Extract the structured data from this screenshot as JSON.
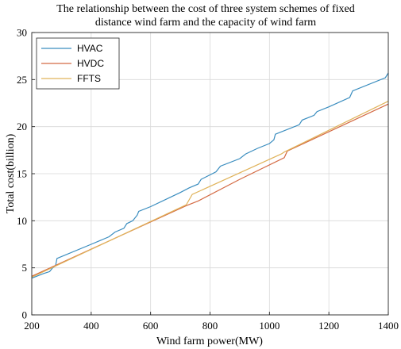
{
  "chart_data": {
    "type": "line",
    "title_lines": [
      "The relationship between the cost of three system schemes of fixed",
      "distance wind farm and the capacity of wind farm"
    ],
    "xlabel": "Wind farm power(MW)",
    "ylabel": "Total cost(billion)",
    "xlim": [
      200,
      1400
    ],
    "ylim": [
      0,
      30
    ],
    "xticks": [
      200,
      400,
      600,
      800,
      1000,
      1200,
      1400
    ],
    "yticks": [
      0,
      5,
      10,
      15,
      20,
      25,
      30
    ],
    "grid": true,
    "legend_position": "top-left",
    "series": [
      {
        "name": "HVAC",
        "color": "#3a8dbf",
        "points": [
          [
            200,
            3.9
          ],
          [
            240,
            4.4
          ],
          [
            260,
            4.6
          ],
          [
            270,
            5.0
          ],
          [
            280,
            5.2
          ],
          [
            285,
            6.0
          ],
          [
            400,
            7.5
          ],
          [
            460,
            8.3
          ],
          [
            480,
            8.8
          ],
          [
            510,
            9.2
          ],
          [
            520,
            9.7
          ],
          [
            540,
            10.0
          ],
          [
            555,
            10.6
          ],
          [
            560,
            11.0
          ],
          [
            600,
            11.5
          ],
          [
            700,
            13.0
          ],
          [
            730,
            13.5
          ],
          [
            760,
            13.9
          ],
          [
            770,
            14.4
          ],
          [
            820,
            15.2
          ],
          [
            835,
            15.8
          ],
          [
            900,
            16.6
          ],
          [
            920,
            17.1
          ],
          [
            960,
            17.7
          ],
          [
            1000,
            18.2
          ],
          [
            1015,
            18.6
          ],
          [
            1020,
            19.2
          ],
          [
            1100,
            20.2
          ],
          [
            1110,
            20.7
          ],
          [
            1150,
            21.2
          ],
          [
            1160,
            21.6
          ],
          [
            1200,
            22.1
          ],
          [
            1270,
            23.1
          ],
          [
            1280,
            23.8
          ],
          [
            1390,
            25.2
          ],
          [
            1400,
            25.7
          ]
        ]
      },
      {
        "name": "HVDC",
        "color": "#d46a43",
        "points": [
          [
            200,
            4.1
          ],
          [
            720,
            11.6
          ],
          [
            760,
            12.1
          ],
          [
            900,
            14.4
          ],
          [
            1050,
            16.7
          ],
          [
            1060,
            17.4
          ],
          [
            1400,
            22.4
          ]
        ]
      },
      {
        "name": "FFTS",
        "color": "#e0b35a",
        "points": [
          [
            200,
            4.0
          ],
          [
            720,
            11.7
          ],
          [
            740,
            12.8
          ],
          [
            1040,
            17.1
          ],
          [
            1050,
            17.3
          ],
          [
            1400,
            22.7
          ]
        ]
      }
    ]
  }
}
